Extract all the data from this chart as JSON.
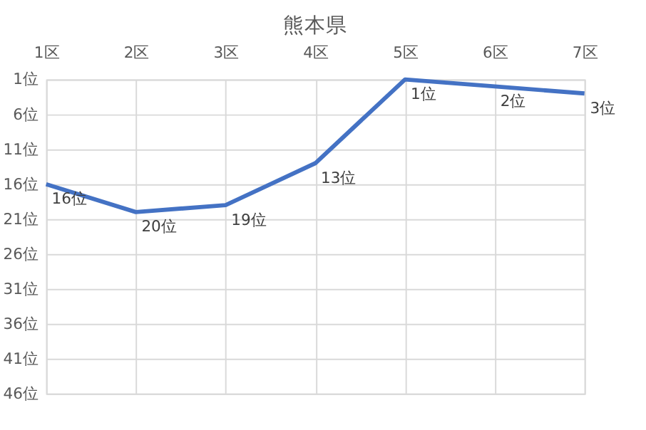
{
  "chart_data": {
    "type": "line",
    "title": "熊本県",
    "categories": [
      "1区",
      "2区",
      "3区",
      "4区",
      "5区",
      "6区",
      "7区"
    ],
    "series": [
      {
        "color": "#4472c4",
        "values": [
          16,
          20,
          19,
          13,
          1,
          2,
          3
        ]
      }
    ],
    "value_labels": [
      "16位",
      "20位",
      "19位",
      "13位",
      "1位",
      "2位",
      "3位"
    ],
    "ylim": [
      46,
      1
    ],
    "yticks": [
      {
        "value": 1,
        "label": "1位"
      },
      {
        "value": 6,
        "label": "6位"
      },
      {
        "value": 11,
        "label": "11位"
      },
      {
        "value": 16,
        "label": "16位"
      },
      {
        "value": 21,
        "label": "21位"
      },
      {
        "value": 26,
        "label": "26位"
      },
      {
        "value": 31,
        "label": "31位"
      },
      {
        "value": 36,
        "label": "36位"
      },
      {
        "value": 41,
        "label": "41位"
      },
      {
        "value": 46,
        "label": "46位"
      }
    ],
    "grid": true,
    "marker": "none",
    "line_style": "solid"
  }
}
